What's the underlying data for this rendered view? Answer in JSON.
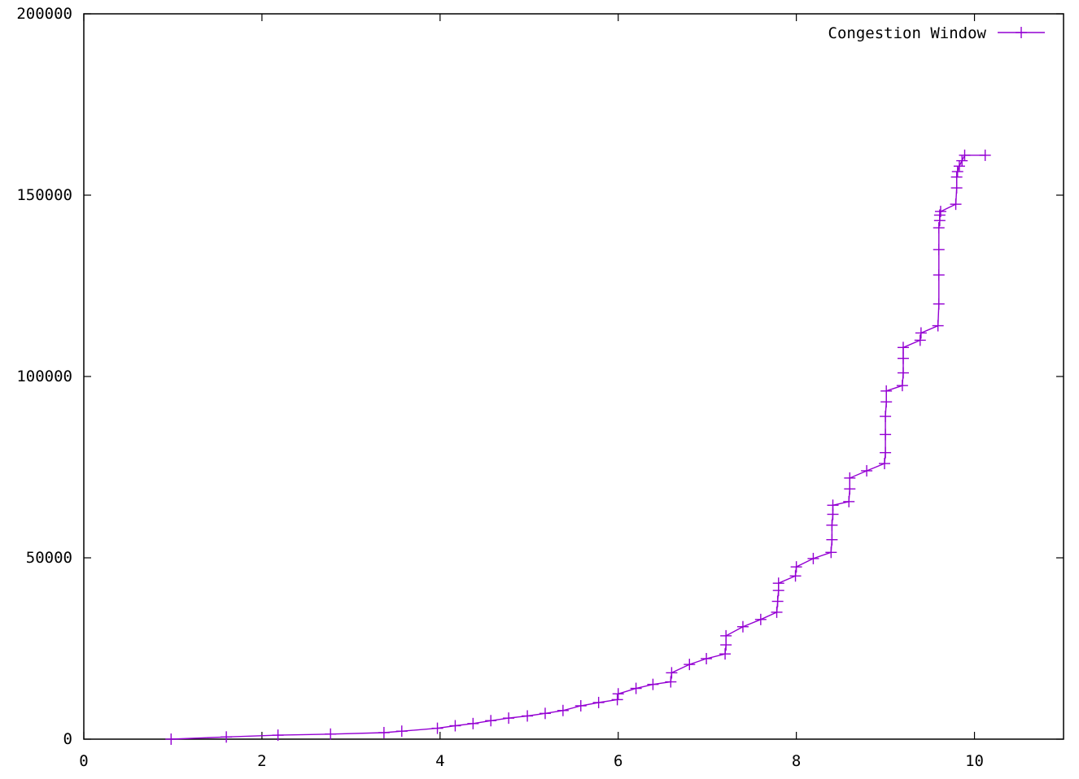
{
  "chart_data": {
    "type": "line",
    "title": "",
    "xlabel": "",
    "ylabel": "",
    "xlim": [
      0,
      11
    ],
    "ylim": [
      0,
      200000
    ],
    "x_ticks": [
      0,
      2,
      4,
      6,
      8,
      10
    ],
    "x_tick_labels": [
      "0",
      "2",
      "4",
      "6",
      "8",
      "10"
    ],
    "y_ticks": [
      0,
      50000,
      100000,
      150000,
      200000
    ],
    "y_tick_labels": [
      "0",
      "50000",
      "100000",
      "150000",
      "200000"
    ],
    "grid": false,
    "legend": {
      "position": "top-right"
    },
    "series": [
      {
        "name": "Congestion Window",
        "color": "#9400d3",
        "marker": "plus",
        "x": [
          0.98,
          1.6,
          2.18,
          2.77,
          3.37,
          3.57,
          3.97,
          4.17,
          4.37,
          4.57,
          4.77,
          4.98,
          5.18,
          5.38,
          5.58,
          5.78,
          5.99,
          6.0,
          6.2,
          6.39,
          6.59,
          6.6,
          6.8,
          6.99,
          7.2,
          7.21,
          7.21,
          7.4,
          7.6,
          7.78,
          7.79,
          7.8,
          7.8,
          7.99,
          8.0,
          8.19,
          8.39,
          8.4,
          8.4,
          8.41,
          8.41,
          8.59,
          8.6,
          8.6,
          8.79,
          8.99,
          9.0,
          9.0,
          9.0,
          9.01,
          9.01,
          9.19,
          9.2,
          9.2,
          9.2,
          9.39,
          9.4,
          9.59,
          9.6,
          9.6,
          9.6,
          9.6,
          9.61,
          9.61,
          9.62,
          9.79,
          9.8,
          9.8,
          9.81,
          9.83,
          9.86,
          9.89,
          10.12
        ],
        "y": [
          0,
          600,
          1100,
          1400,
          1800,
          2200,
          3000,
          3700,
          4300,
          5100,
          5800,
          6400,
          7100,
          7900,
          9200,
          10100,
          10900,
          12500,
          14000,
          15100,
          15800,
          18300,
          20600,
          22200,
          23500,
          26000,
          28500,
          31000,
          33000,
          35000,
          38000,
          41000,
          43000,
          45000,
          47500,
          49800,
          51500,
          55000,
          59000,
          62000,
          64500,
          65500,
          69000,
          72000,
          74000,
          76000,
          79000,
          84000,
          89000,
          93000,
          96000,
          97500,
          101000,
          105000,
          108000,
          110000,
          112000,
          114000,
          120000,
          128000,
          135000,
          141000,
          143000,
          144500,
          145500,
          147500,
          152000,
          155000,
          156500,
          158000,
          159500,
          161000,
          161000
        ]
      }
    ]
  }
}
